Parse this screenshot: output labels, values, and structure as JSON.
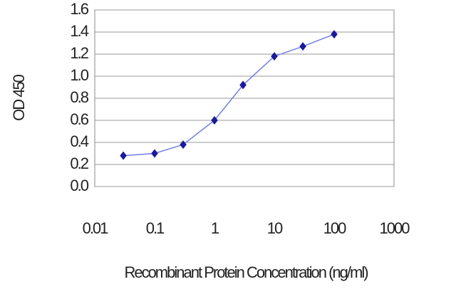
{
  "chart_data": {
    "type": "line",
    "x_label": "Recombinant Protein Concentration (ng/ml)",
    "y_label": "OD 450",
    "x": [
      0.03,
      0.1,
      0.3,
      1,
      3,
      10,
      30,
      100
    ],
    "series": [
      {
        "color": "#1a1a9a",
        "values": [
          0.28,
          0.3,
          0.38,
          0.6,
          0.92,
          1.18,
          1.27,
          1.38
        ]
      }
    ],
    "line_color": "#6f7fe0",
    "x_log": true,
    "xlim": [
      0.01,
      1000
    ],
    "xticks": [
      0.01,
      0.1,
      1,
      10,
      100,
      1000
    ],
    "ylim": [
      0,
      1.6
    ],
    "yticks": [
      {
        "value": 0,
        "label": "0.0"
      },
      0.2,
      0.4,
      0.6,
      0.8,
      {
        "value": 1,
        "label": "1.0"
      },
      1.2,
      1.4,
      1.6
    ],
    "grid": true
  }
}
